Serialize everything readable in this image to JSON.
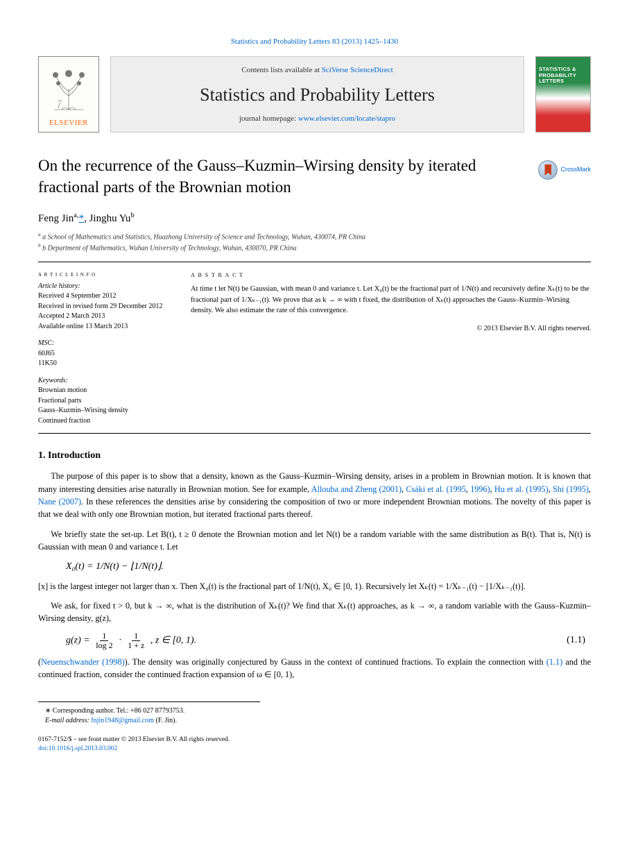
{
  "header": {
    "top_citation": "Statistics and Probability Letters 83 (2013) 1425–1430",
    "contents_prefix": "Contents lists available at ",
    "contents_link_text": "SciVerse ScienceDirect",
    "journal_name": "Statistics and Probability Letters",
    "homepage_prefix": "journal homepage: ",
    "homepage_link_text": "www.elsevier.com/locate/stapro",
    "elsevier_brand": "ELSEVIER",
    "cover_title": "STATISTICS & PROBABILITY LETTERS",
    "crossmark_text": "CrossMark"
  },
  "article": {
    "title": "On the recurrence of the Gauss–Kuzmin–Wirsing density by iterated fractional parts of the Brownian motion",
    "authors_html": "Feng Jin<span class='sup-ref'>a,</span><a class='corr' href='#'>*</a>, Jinghu Yu<span class='sup-ref'>b</span>",
    "affiliations": [
      "a School of Mathematics and Statistics, Huazhong University of Science and Technology, Wuhan, 430074, PR China",
      "b Department of Mathematics, Wuhan University of Technology, Wuhan, 430070, PR China"
    ]
  },
  "meta": {
    "history_label": "a r t i c l e   i n f o",
    "history": {
      "l1": "Article history:",
      "l2": "Received 4 September 2012",
      "l3": "Received in revised form 29 December 2012",
      "l4": "Accepted 2 March 2013",
      "l5": "Available online 13 March 2013"
    },
    "msc_label": "MSC:",
    "msc": [
      "60J65",
      "11K50"
    ],
    "keywords_label": "Keywords:",
    "keywords": [
      "Brownian motion",
      "Fractional parts",
      "Gauss–Kuzmin–Wirsing density",
      "Continued fraction"
    ],
    "abstract_label": "a b s t r a c t",
    "abstract_text": "At time t let N(t) be Gaussian, with mean 0 and variance t. Let X₀(t) be the fractional part of 1/N(t) and recursively define Xₖ(t) to be the fractional part of 1/Xₖ₋₁(t). We prove that as k → ∞ with t fixed, the distribution of Xₖ(t) approaches the Gauss–Kuzmin–Wirsing density. We also estimate the rate of this convergence.",
    "copyright": "© 2013 Elsevier B.V. All rights reserved."
  },
  "body": {
    "section_title": "1. Introduction",
    "p1a": "The purpose of this paper is to show that a density, known as the Gauss–Kuzmin–Wirsing density, arises in a problem in Brownian motion. It is known that many interesting densities arise naturally in Brownian motion. See for example, ",
    "ref1": "Allouba and Zheng (2001)",
    "sep1": ", ",
    "ref2": "Csáki et al. (1995",
    "sep2": ", ",
    "ref3": "1996)",
    "sep3": ", ",
    "ref4": "Hu et al. (1995)",
    "sep4": ", ",
    "ref5": "Shi (1995)",
    "sep5": ", ",
    "ref6": "Nane (2007)",
    "p1b": ". In these references the densities arise by considering the composition of two or more independent Brownian motions. The novelty of this paper is that we deal with only one Brownian motion, but iterated fractional parts thereof.",
    "p2": "We briefly state the set-up. Let B(t), t ≥ 0 denote the Brownian motion and let N(t) be a random variable with the same distribution as B(t). That is, N(t) is Gaussian with mean 0 and variance t. Let",
    "eq1_lhs": "X₀(t) = 1/N(t) − ⌊1/N(t)⌋.",
    "p3": "[x] is the largest integer not larger than x. Then X₀(t) is the fractional part of 1/N(t), X₀ ∈ [0, 1). Recursively let Xₖ(t) = 1/Xₖ₋₁(t) − [1/Xₖ₋₁(t)].",
    "p4": "We ask, for fixed t > 0, but k → ∞, what is the distribution of Xₖ(t)? We find that Xₖ(t) approaches, as k → ∞, a random variable with the Gauss–Kuzmin–Wirsing density, g(z),",
    "eq2_text": "g(z) =",
    "eq2_num_a": "1",
    "eq2_den_a": "log 2",
    "eq2_num_b": "1",
    "eq2_den_b": "1 + z",
    "eq2_tail": ",    z ∈ [0, 1).",
    "eq2_num": "(1.1)",
    "p5a": "(",
    "ref7": "Neuenschwander (1998)",
    "p5b": "). The density was originally conjectured by Gauss in the context of continued fractions. To explain the connection with ",
    "ref8": "(1.1)",
    "p5c": " and the continued fraction, consider the continued fraction expansion of ω ∈ [0, 1),"
  },
  "footnotes": {
    "corr_label": "∗",
    "corr_text": " Corresponding author. Tel.: +86 027 87793753.",
    "email_label": "E-mail address: ",
    "email": "fnjin1948@gmail.com",
    "email_tail": " (F. Jin)."
  },
  "bottom": {
    "l1": "0167-7152/$ – see front matter © 2013 Elsevier B.V. All rights reserved.",
    "doi": "doi:10.1016/j.spl.2013.03.002"
  },
  "colors": {
    "link": "#0066cc",
    "elsevier_orange": "#ff6600",
    "cover_green": "#2a8a4a",
    "cover_red": "#d93030",
    "grey_box": "#eeeeee"
  }
}
